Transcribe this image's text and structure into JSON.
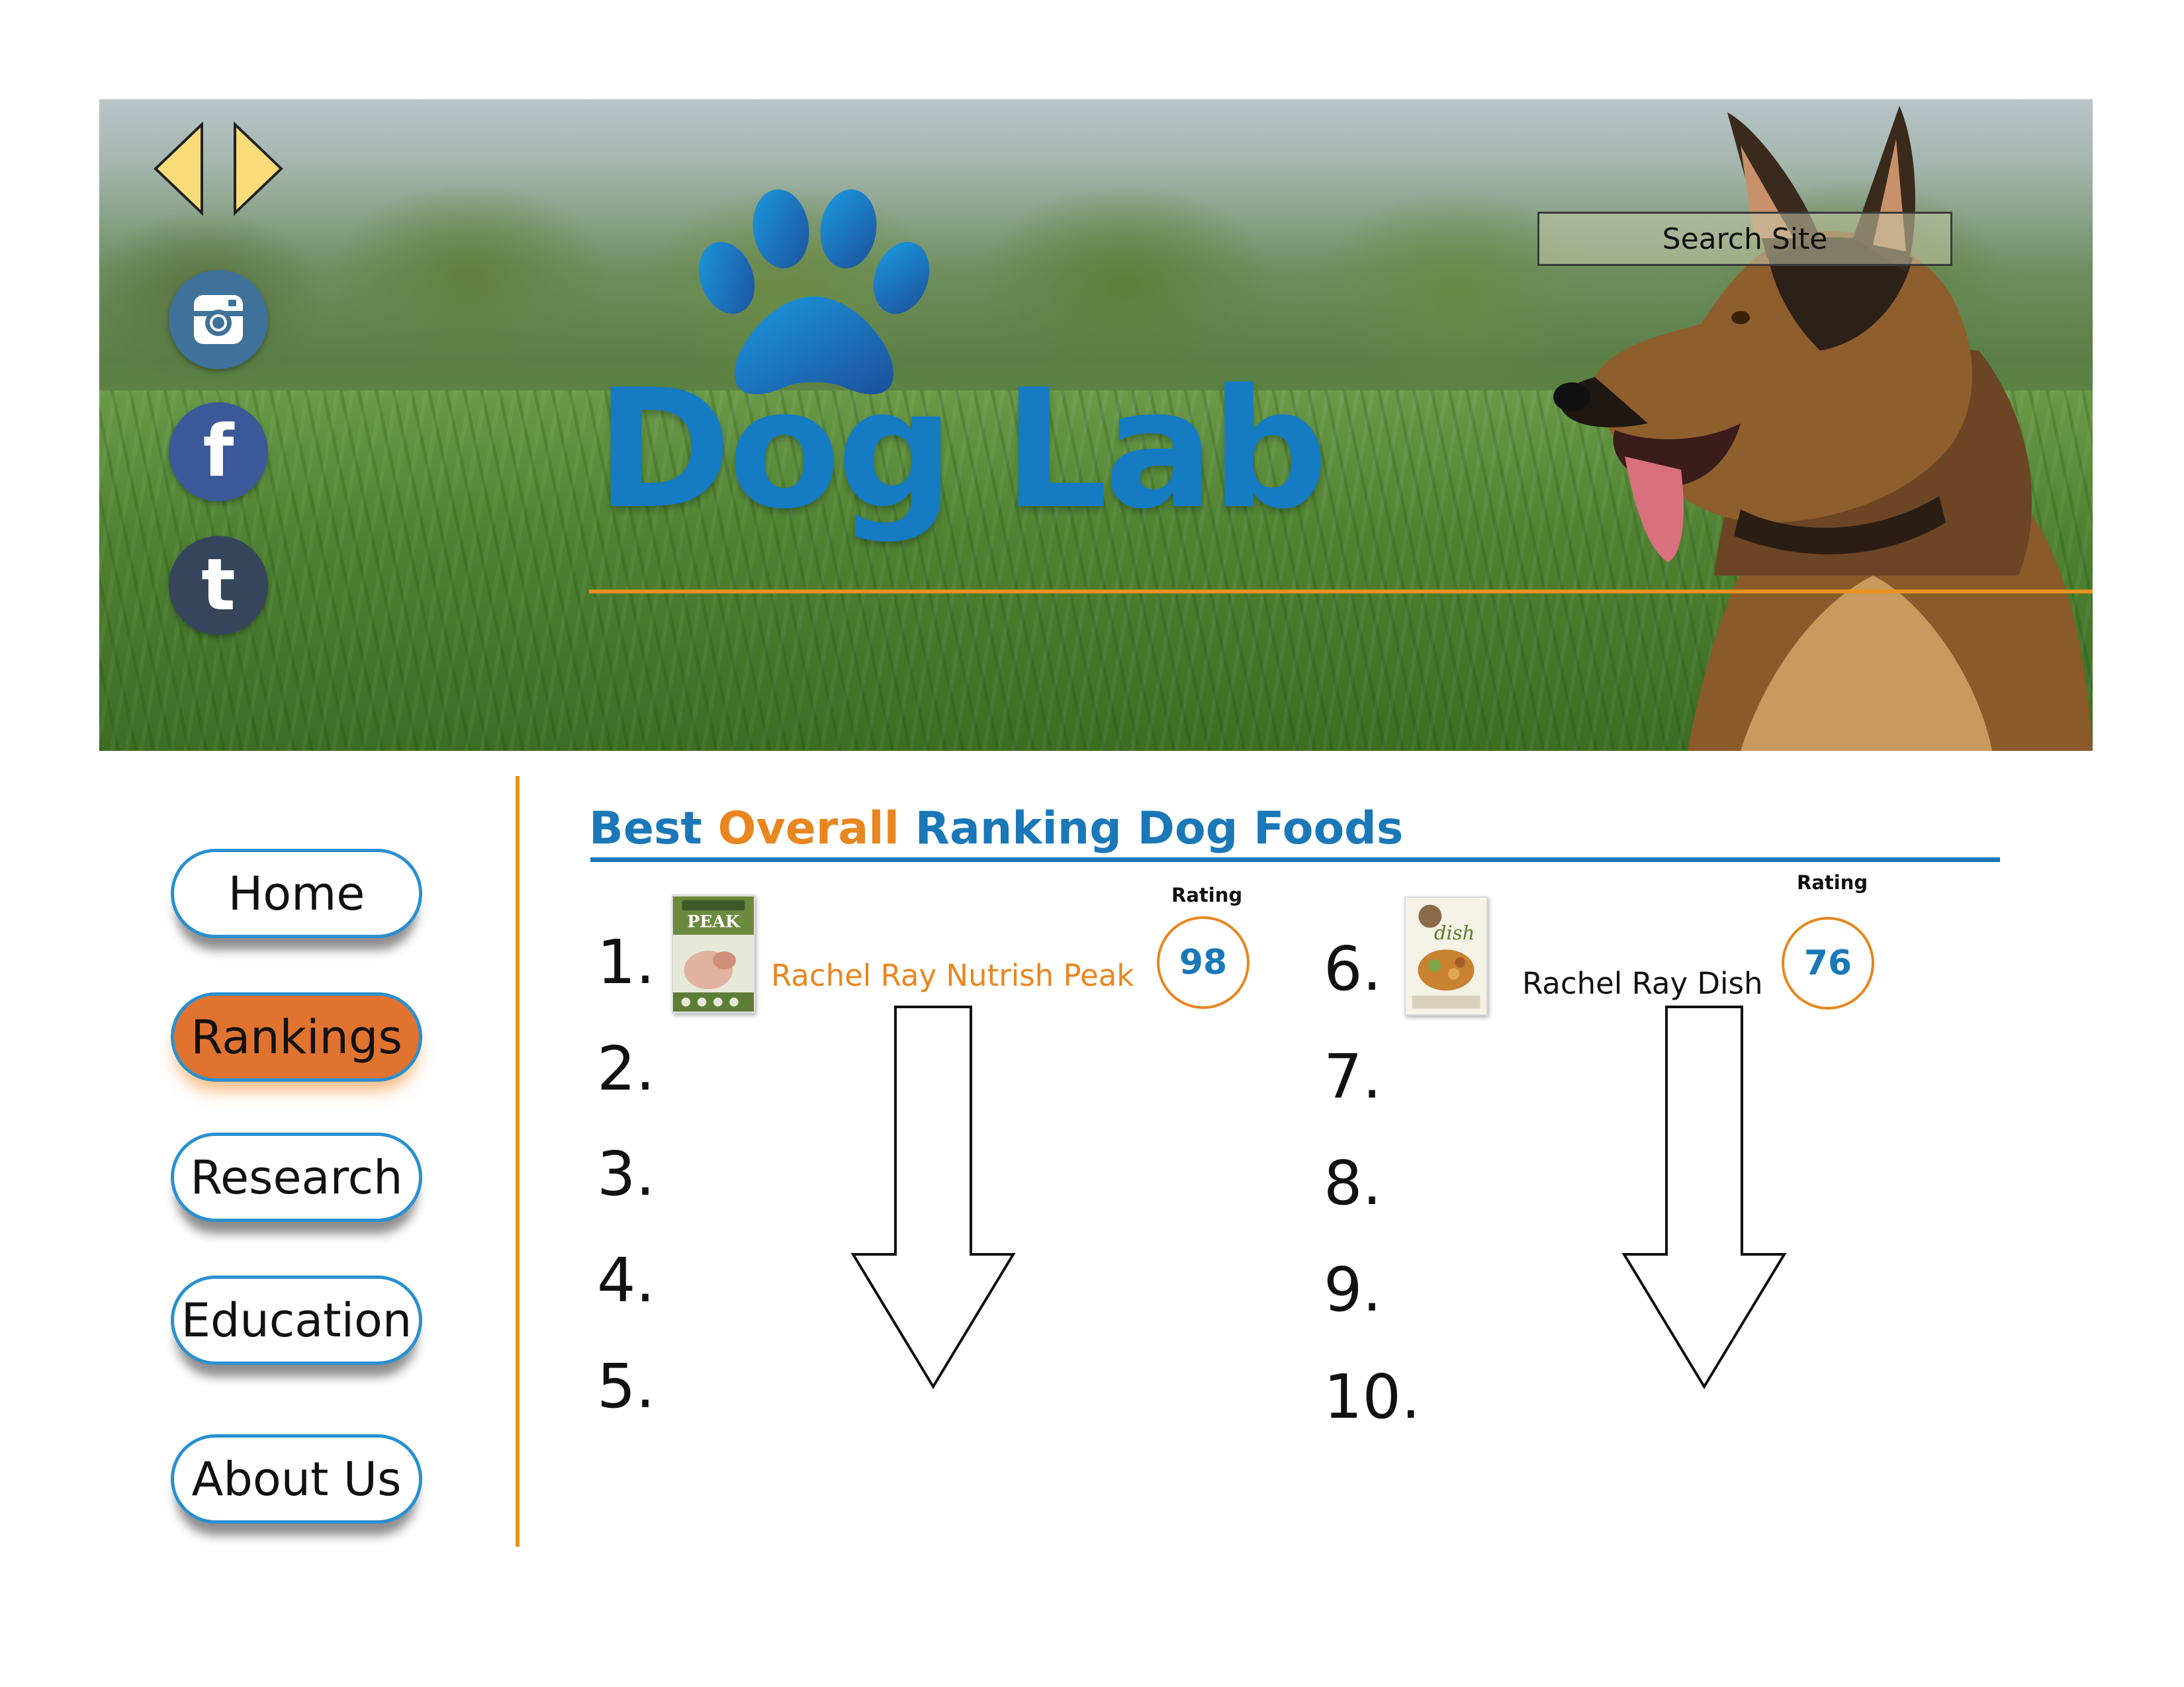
{
  "header": {
    "site_title": "Dog Lab",
    "search": {
      "placeholder": "Search Site"
    },
    "nav_arrows": {
      "prev_icon": "caret-left-icon",
      "next_icon": "caret-right-icon",
      "color": "#f9dc7a"
    },
    "social": [
      {
        "name": "instagram",
        "icon": "instagram-icon",
        "color": "#3f729b"
      },
      {
        "name": "facebook",
        "icon": "facebook-icon",
        "glyph": "f",
        "color": "#3b5998"
      },
      {
        "name": "tumblr",
        "icon": "tumblr-icon",
        "glyph": "t",
        "color": "#35465c"
      }
    ],
    "logo_icon": "paw-icon",
    "brand_color": "#157bc3",
    "accent_color": "#e8921f"
  },
  "sidebar": {
    "items": [
      {
        "label": "Home",
        "active": false
      },
      {
        "label": "Rankings",
        "active": true
      },
      {
        "label": "Research",
        "active": false
      },
      {
        "label": "Education",
        "active": false
      },
      {
        "label": "About Us",
        "active": false
      }
    ],
    "active_color": "#e07330"
  },
  "rankings": {
    "heading": {
      "part1": "Best ",
      "part2": "Overall",
      "part3": " Ranking Dog Foods"
    },
    "rating_label": "Rating",
    "left_column": {
      "numbers": [
        "1.",
        "2.",
        "3.",
        "4.",
        "5."
      ],
      "top_item": {
        "rank": "1.",
        "name": "Rachel Ray Nutrish Peak",
        "rating": "98",
        "image_icon": "nutrish-peak-bag-icon",
        "name_color": "#e8861f"
      }
    },
    "right_column": {
      "numbers": [
        "6.",
        "7.",
        "8.",
        "9.",
        "10."
      ],
      "top_item": {
        "rank": "6.",
        "name": "Rachel Ray Dish",
        "rating": "76",
        "image_icon": "nutrish-dish-bag-icon",
        "name_color": "#111111"
      }
    },
    "scroll_arrow_icon": "down-arrow-icon"
  }
}
